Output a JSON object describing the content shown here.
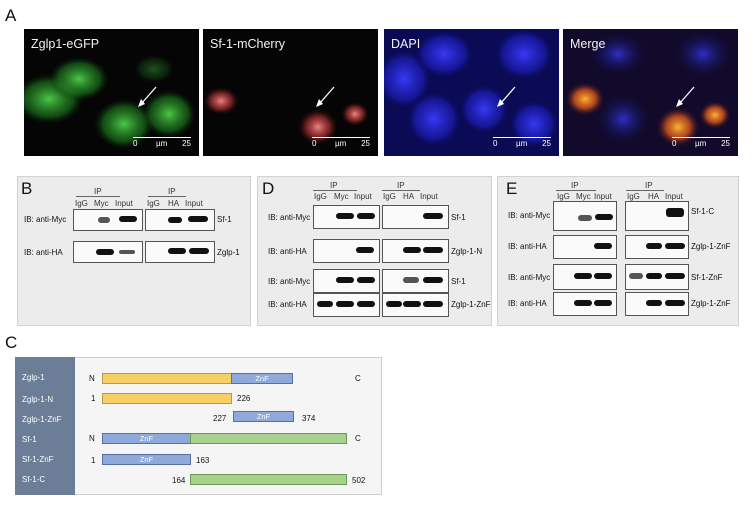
{
  "panel_letters": {
    "a": "A",
    "b": "B",
    "c": "C",
    "d": "D",
    "e": "E"
  },
  "panel_a": {
    "tiles": [
      {
        "label": "Zglp1-eGFP",
        "scale_zero": "0",
        "scale_unit": "µm",
        "scale_value": "25"
      },
      {
        "label": "Sf-1-mCherry",
        "scale_zero": "0",
        "scale_unit": "µm",
        "scale_value": "25"
      },
      {
        "label": "DAPI",
        "scale_zero": "0",
        "scale_unit": "µm",
        "scale_value": "25"
      },
      {
        "label": "Merge",
        "scale_zero": "0",
        "scale_unit": "µm",
        "scale_value": "25"
      }
    ]
  },
  "panel_b": {
    "left": {
      "ip": "IP",
      "cols": [
        "IgG",
        "Myc",
        "Input"
      ]
    },
    "right": {
      "ip": "IP",
      "cols": [
        "IgG",
        "HA",
        "Input"
      ]
    },
    "rows": [
      {
        "label": "IB: anti-Myc",
        "target": "Sf-1"
      },
      {
        "label": "IB: anti-HA",
        "target": "Zglp-1"
      }
    ]
  },
  "panel_d": {
    "left": {
      "ip": "IP",
      "cols": [
        "IgG",
        "Myc",
        "Input"
      ]
    },
    "right": {
      "ip": "IP",
      "cols": [
        "IgG",
        "HA",
        "Input"
      ]
    },
    "rows": [
      {
        "label": "IB: anti-Myc",
        "target": "Sf-1"
      },
      {
        "label": "IB: anti-HA",
        "target": "Zglp-1-N"
      },
      {
        "label": "IB: anti-Myc",
        "target": "Sf-1"
      },
      {
        "label": "IB: anti-HA",
        "target": "Zglp-1-ZnF"
      }
    ]
  },
  "panel_e": {
    "left": {
      "ip": "IP",
      "cols": [
        "IgG",
        "Myc",
        "Input"
      ]
    },
    "right": {
      "ip": "IP",
      "cols": [
        "IgG",
        "HA",
        "Input"
      ]
    },
    "rows": [
      {
        "label": "IB: anti-Myc",
        "target": "Sf-1-C"
      },
      {
        "label": "IB: anti-HA",
        "target": "Zglp-1-ZnF"
      },
      {
        "label": "IB: anti-Myc",
        "target": "Sf-1-ZnF"
      },
      {
        "label": "IB: anti-HA",
        "target": "Zglp-1-ZnF"
      }
    ]
  },
  "panel_c": {
    "constructs": [
      {
        "name": "Zglp-1",
        "left": "N",
        "right": "C",
        "domain": "ZnF"
      },
      {
        "name": "Zglp-1-N",
        "start": "1",
        "end": "226"
      },
      {
        "name": "Zglp-1-ZnF",
        "start": "227",
        "end": "374",
        "domain": "ZnF"
      },
      {
        "name": "Sf-1",
        "left": "N",
        "right": "C",
        "domain": "ZnF"
      },
      {
        "name": "Sf-1-ZnF",
        "start": "1",
        "end": "163",
        "domain": "ZnF"
      },
      {
        "name": "Sf-1-C",
        "start": "164",
        "end": "502"
      }
    ]
  },
  "colors": {
    "zglp1": "#f7d065",
    "znf": "#8ea9da",
    "sf1": "#a8d18e",
    "sidebar": "#6b7d97"
  }
}
